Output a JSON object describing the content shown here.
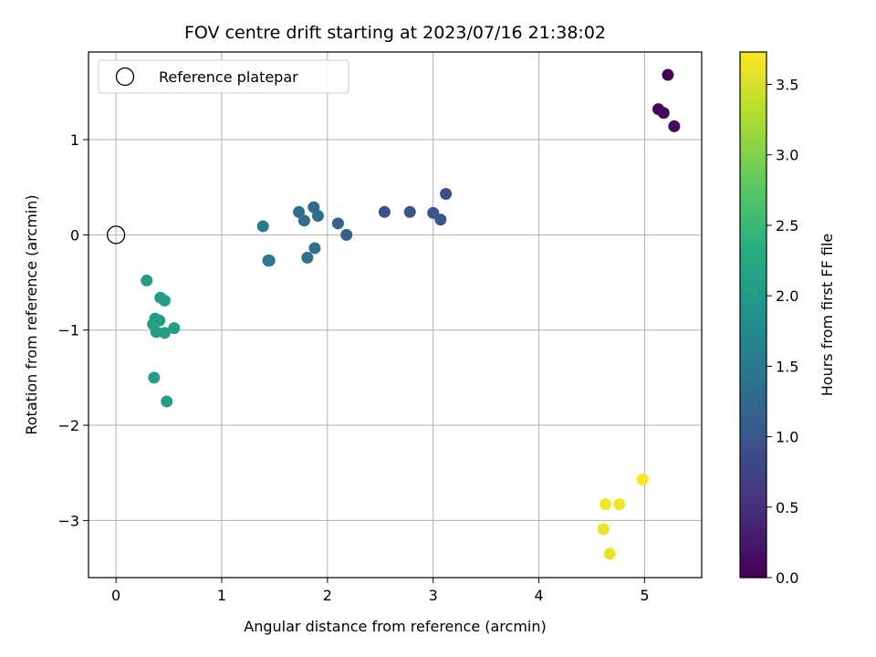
{
  "chart_data": {
    "type": "scatter",
    "title": "FOV centre drift starting at 2023/07/16 21:38:02",
    "xlabel": "Angular distance from reference (arcmin)",
    "ylabel": "Rotation from reference (arcmin)",
    "xlim": [
      -0.26,
      5.54
    ],
    "ylim": [
      -3.6,
      1.92
    ],
    "xticks": [
      0,
      1,
      2,
      3,
      4,
      5
    ],
    "yticks": [
      -3,
      -2,
      -1,
      0,
      1
    ],
    "grid": true,
    "legend": {
      "placement": "top-left",
      "entries": [
        "Reference platepar"
      ]
    },
    "reference_point": {
      "name": "Reference platepar",
      "x": 0,
      "y": 0,
      "marker": "open-circle"
    },
    "colorbar": {
      "label": "Hours from first FF file",
      "range": [
        0,
        3.73
      ],
      "ticks": [
        0.0,
        0.5,
        1.0,
        1.5,
        2.0,
        2.5,
        3.0,
        3.5
      ],
      "colormap": "viridis"
    },
    "points": [
      {
        "x": 5.22,
        "y": 1.68,
        "c": 0.02
      },
      {
        "x": 5.13,
        "y": 1.32,
        "c": 0.05
      },
      {
        "x": 5.18,
        "y": 1.28,
        "c": 0.08
      },
      {
        "x": 5.28,
        "y": 1.14,
        "c": 0.11
      },
      {
        "x": 3.12,
        "y": 0.43,
        "c": 0.9
      },
      {
        "x": 2.54,
        "y": 0.24,
        "c": 0.95
      },
      {
        "x": 2.78,
        "y": 0.24,
        "c": 0.95
      },
      {
        "x": 3.0,
        "y": 0.23,
        "c": 0.98
      },
      {
        "x": 3.07,
        "y": 0.16,
        "c": 1.02
      },
      {
        "x": 2.18,
        "y": 0.0,
        "c": 1.15
      },
      {
        "x": 2.1,
        "y": 0.12,
        "c": 1.18
      },
      {
        "x": 1.87,
        "y": 0.29,
        "c": 1.3
      },
      {
        "x": 1.73,
        "y": 0.24,
        "c": 1.35
      },
      {
        "x": 1.78,
        "y": 0.15,
        "c": 1.35
      },
      {
        "x": 1.91,
        "y": 0.2,
        "c": 1.35
      },
      {
        "x": 1.88,
        "y": -0.14,
        "c": 1.38
      },
      {
        "x": 1.81,
        "y": -0.24,
        "c": 1.4
      },
      {
        "x": 1.39,
        "y": 0.09,
        "c": 1.5
      },
      {
        "x": 1.45,
        "y": -0.27,
        "c": 1.5
      },
      {
        "x": 1.44,
        "y": -0.27,
        "c": 1.5
      },
      {
        "x": 0.29,
        "y": -0.48,
        "c": 2.05
      },
      {
        "x": 0.42,
        "y": -0.66,
        "c": 2.05
      },
      {
        "x": 0.46,
        "y": -0.69,
        "c": 2.05
      },
      {
        "x": 0.37,
        "y": -0.88,
        "c": 2.05
      },
      {
        "x": 0.41,
        "y": -0.9,
        "c": 2.05
      },
      {
        "x": 0.35,
        "y": -0.94,
        "c": 2.05
      },
      {
        "x": 0.55,
        "y": -0.98,
        "c": 2.05
      },
      {
        "x": 0.38,
        "y": -1.02,
        "c": 2.05
      },
      {
        "x": 0.46,
        "y": -1.03,
        "c": 2.05
      },
      {
        "x": 0.36,
        "y": -1.5,
        "c": 2.05
      },
      {
        "x": 0.48,
        "y": -1.75,
        "c": 2.05
      },
      {
        "x": 4.98,
        "y": -2.57,
        "c": 3.72
      },
      {
        "x": 4.63,
        "y": -2.83,
        "c": 3.66
      },
      {
        "x": 4.76,
        "y": -2.83,
        "c": 3.66
      },
      {
        "x": 4.61,
        "y": -3.09,
        "c": 3.62
      },
      {
        "x": 4.67,
        "y": -3.35,
        "c": 3.62
      }
    ]
  }
}
